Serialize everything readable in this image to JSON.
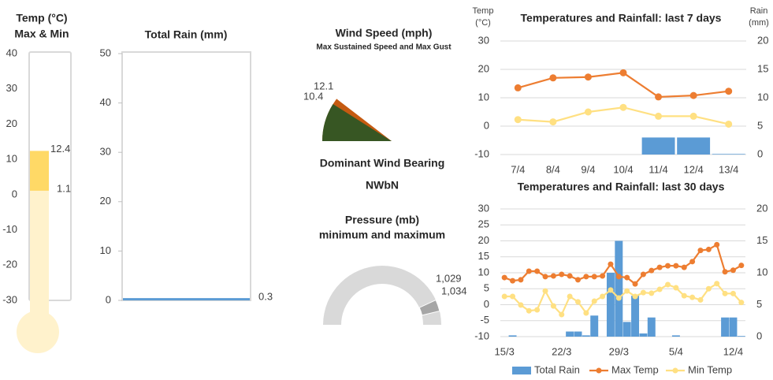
{
  "chart_data": [
    {
      "type": "thermometer",
      "title": "Temp (°C)",
      "subtitle": "Max & Min",
      "ylim": [
        -30,
        40
      ],
      "yticks": [
        40,
        30,
        20,
        10,
        0,
        -10,
        -20,
        -30
      ],
      "values": [
        12.4,
        1.1
      ],
      "colors": [
        "#ffd966",
        "#fff2cc"
      ]
    },
    {
      "type": "bar",
      "title": "Total Rain (mm)",
      "ylim": [
        0,
        50
      ],
      "yticks": [
        0,
        10,
        20,
        30,
        40,
        50
      ],
      "values": [
        0.3
      ],
      "color": "#5b9bd5"
    },
    {
      "type": "wind",
      "title": "Wind Speed (mph)",
      "subtitle": "Max Sustained Speed and Max Gust",
      "values": [
        10.4,
        12.1
      ],
      "colors": [
        "#375623",
        "#c55a11"
      ],
      "bearing_title": "Dominant Wind Bearing",
      "bearing": "NWbN"
    },
    {
      "type": "gauge",
      "title": "Pressure (mb)",
      "subtitle": "minimum and maximum",
      "values": [
        1029,
        1034
      ],
      "value_labels": [
        "1,029",
        "1,034"
      ],
      "colors": [
        "#d9d9d9",
        "#a6a6a6"
      ]
    },
    {
      "type": "combo",
      "title": "Temperatures and Rainfall: last 7 days",
      "ylabel": [
        "Temp",
        "(°C)"
      ],
      "y2label": [
        "Rain",
        "(mm)"
      ],
      "grid": true,
      "categories": [
        "7/4",
        "8/4",
        "9/4",
        "10/4",
        "11/4",
        "12/4",
        "13/4"
      ],
      "ylim": [
        -10,
        30
      ],
      "yticks": [
        -10,
        0,
        10,
        20,
        30
      ],
      "y2lim": [
        0,
        20
      ],
      "y2ticks": [
        0,
        5,
        10,
        15,
        20
      ],
      "series": [
        {
          "type": "bar",
          "axis": "y2",
          "color": "#5b9bd5",
          "values": [
            0,
            0,
            0,
            0,
            3,
            3,
            0.1
          ]
        },
        {
          "type": "line",
          "color": "#ed7d31",
          "values": [
            13.5,
            17,
            17.3,
            18.8,
            10.3,
            10.8,
            12.3
          ]
        },
        {
          "type": "line",
          "color": "#ffe082",
          "values": [
            2.3,
            1.5,
            5,
            6.6,
            3.5,
            3.5,
            0.7
          ]
        }
      ]
    },
    {
      "type": "combo",
      "title": "Temperatures and Rainfall: last 30 days",
      "grid": true,
      "legend": "bottom",
      "categories": [
        "15/3",
        null,
        null,
        null,
        null,
        null,
        null,
        "22/3",
        null,
        null,
        null,
        null,
        null,
        null,
        "29/3",
        null,
        null,
        null,
        null,
        null,
        null,
        "5/4",
        null,
        null,
        null,
        null,
        null,
        null,
        "12/4",
        null
      ],
      "ylim": [
        -10,
        30
      ],
      "yticks": [
        -10,
        -5,
        0,
        5,
        10,
        15,
        20,
        25,
        30
      ],
      "y2lim": [
        0,
        20
      ],
      "y2ticks": [
        0,
        5,
        10,
        15,
        20
      ],
      "series": [
        {
          "name": "Total Rain",
          "type": "bar",
          "axis": "y2",
          "color": "#5b9bd5",
          "values": [
            0,
            0.2,
            0,
            0,
            0,
            0,
            0,
            0,
            0.8,
            0.8,
            0.2,
            3.3,
            0,
            10,
            15,
            2.3,
            6.4,
            0.5,
            3,
            0,
            0,
            0.2,
            0,
            0,
            0,
            0,
            0,
            3,
            3,
            0.1
          ]
        },
        {
          "name": "Max Temp",
          "type": "line",
          "color": "#ed7d31",
          "values": [
            8.5,
            7.5,
            7.8,
            10.5,
            10.5,
            8.8,
            9,
            9.5,
            9,
            7.8,
            8.8,
            8.8,
            9,
            12.7,
            8.8,
            8.5,
            6.5,
            9.5,
            10.7,
            11.7,
            12.2,
            12.2,
            11.7,
            13.5,
            17,
            17.3,
            18.8,
            10.3,
            10.8,
            12.3
          ]
        },
        {
          "name": "Min Temp",
          "type": "line",
          "color": "#ffe082",
          "values": [
            2.6,
            2.6,
            -0.1,
            -1.9,
            -1.6,
            4.3,
            -0.4,
            -3.1,
            2.6,
            0.9,
            -2.6,
            1.1,
            2.6,
            4.6,
            2.1,
            4.3,
            2.6,
            3.8,
            3.6,
            4.8,
            6.3,
            5.3,
            2.8,
            2.3,
            1.5,
            5,
            6.6,
            3.5,
            3.5,
            0.7
          ]
        }
      ]
    }
  ]
}
